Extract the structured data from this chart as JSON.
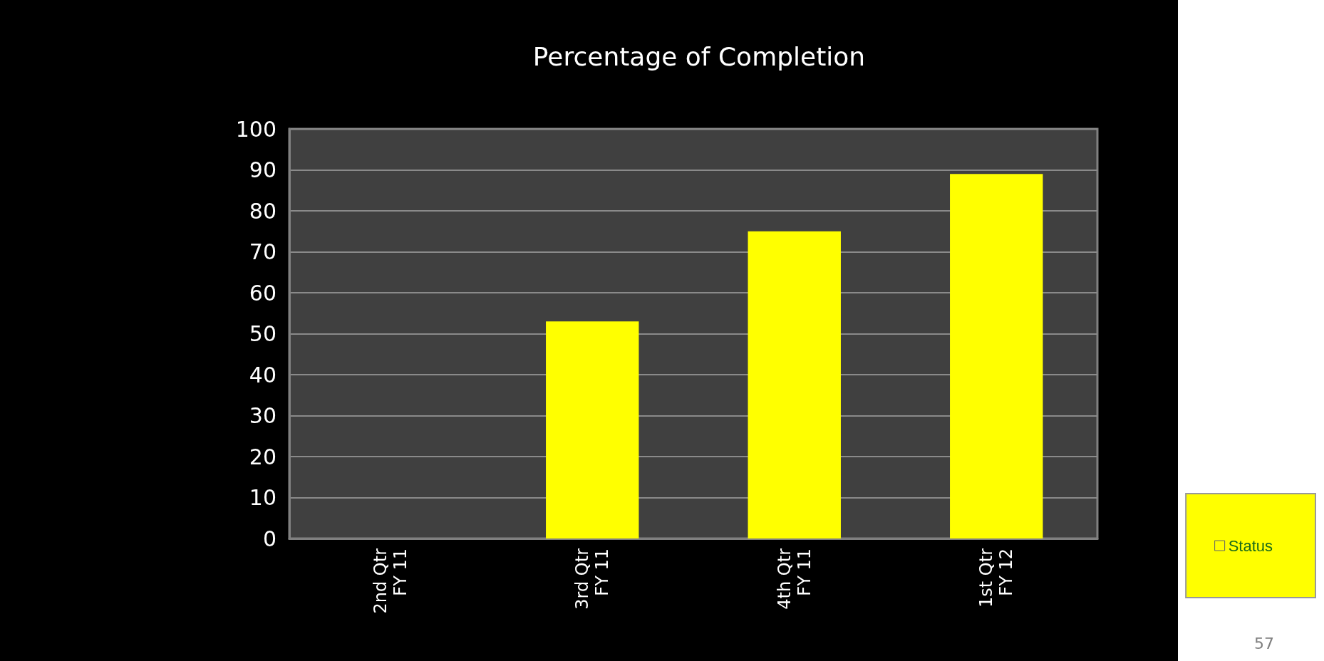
{
  "chart_data": {
    "type": "bar",
    "title": "Percentage of Completion",
    "categories": [
      "2nd Qtr\nFY 11",
      "3rd Qtr\nFY 11",
      "4th Qtr\nFY 11",
      "1st Qtr\nFY 12"
    ],
    "series": [
      {
        "name": "Status",
        "color": "#ffff00",
        "values": [
          0,
          53,
          75,
          89
        ]
      }
    ],
    "ylim": [
      0,
      100
    ],
    "yticks": [
      0,
      10,
      20,
      30,
      40,
      50,
      60,
      70,
      80,
      90,
      100
    ],
    "grid": "y",
    "legend": "bottom right",
    "annotations": [
      "57"
    ]
  }
}
